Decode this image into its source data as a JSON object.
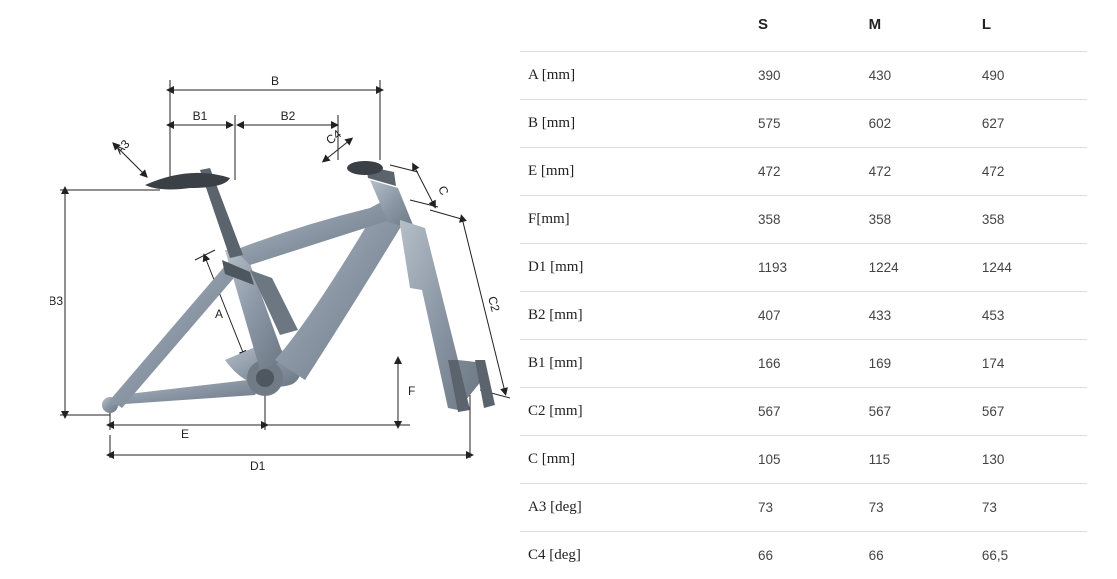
{
  "diagram": {
    "labels": [
      "B",
      "B1",
      "B2",
      "A3",
      "C4",
      "C",
      "C2",
      "B3",
      "A",
      "E",
      "F",
      "D1"
    ],
    "frame_color": "#8a96a4",
    "dim_line_color": "#222",
    "label_fontsize": 12
  },
  "geometry_table": {
    "type": "table",
    "columns": [
      "",
      "S",
      "M",
      "L"
    ],
    "header_fontsize": 15,
    "header_fontweight": "bold",
    "cell_fontsize": 13.5,
    "label_font": "serif",
    "border_color": "#ddd",
    "text_color": "#444",
    "label_color": "#222",
    "column_widths_pct": [
      40,
      20,
      20,
      20
    ],
    "rows": [
      {
        "label": "A [mm]",
        "s": "390",
        "m": "430",
        "l": "490"
      },
      {
        "label": "B [mm]",
        "s": "575",
        "m": "602",
        "l": "627"
      },
      {
        "label": "E [mm]",
        "s": "472",
        "m": "472",
        "l": "472"
      },
      {
        "label": "F[mm]",
        "s": "358",
        "m": "358",
        "l": "358"
      },
      {
        "label": "D1 [mm]",
        "s": "1193",
        "m": "1224",
        "l": "1244"
      },
      {
        "label": "B2 [mm]",
        "s": "407",
        "m": "433",
        "l": "453"
      },
      {
        "label": "B1 [mm]",
        "s": "166",
        "m": "169",
        "l": "174"
      },
      {
        "label": "C2 [mm]",
        "s": "567",
        "m": "567",
        "l": "567"
      },
      {
        "label": "C [mm]",
        "s": "105",
        "m": "115",
        "l": "130"
      },
      {
        "label": "A3 [deg]",
        "s": "73",
        "m": "73",
        "l": "73"
      },
      {
        "label": "C4 [deg]",
        "s": "66",
        "m": "66",
        "l": "66,5"
      }
    ]
  }
}
